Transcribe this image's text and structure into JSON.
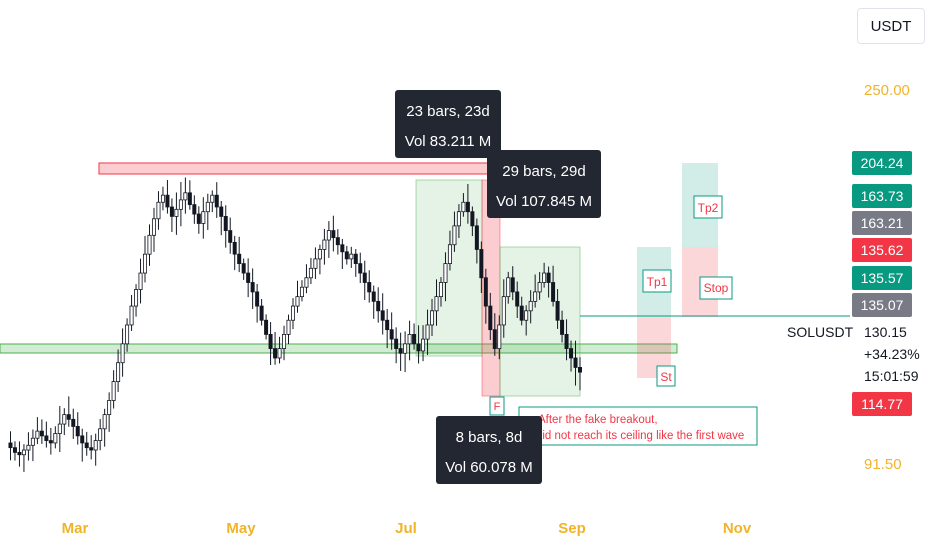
{
  "currency_selector": "USDT",
  "chart_data": {
    "type": "candlestick",
    "symbol": "SOLUSDT",
    "x_ticks": [
      "Mar",
      "May",
      "Jul",
      "Sep",
      "Nov"
    ],
    "y_ticks": [
      "250.00",
      "91.50"
    ],
    "ohlc_summary": {
      "close": 130.15,
      "change": "+34.23%",
      "countdown": "15:01:59"
    },
    "close_series_approx": [
      100,
      98,
      96,
      95,
      97,
      99,
      102,
      105,
      103,
      101,
      100,
      104,
      108,
      112,
      110,
      107,
      103,
      100,
      98,
      97,
      101,
      106,
      112,
      118,
      126,
      134,
      142,
      150,
      158,
      165,
      172,
      180,
      188,
      195,
      202,
      205,
      200,
      196,
      199,
      203,
      206,
      201,
      197,
      193,
      198,
      202,
      205,
      200,
      196,
      190,
      185,
      180,
      176,
      172,
      168,
      164,
      158,
      152,
      146,
      140,
      136,
      140,
      146,
      152,
      158,
      162,
      166,
      170,
      174,
      178,
      182,
      186,
      190,
      187,
      184,
      181,
      178,
      180,
      176,
      172,
      168,
      164,
      160,
      156,
      152,
      148,
      144,
      140,
      138,
      142,
      146,
      142,
      139,
      144,
      150,
      156,
      162,
      168,
      176,
      184,
      192,
      198,
      202,
      198,
      192,
      182,
      170,
      158,
      148,
      140,
      150,
      162,
      170,
      164,
      158,
      152,
      156,
      160,
      164,
      168,
      172,
      168,
      160,
      152,
      146,
      140,
      136,
      132,
      130
    ],
    "price_labels": [
      {
        "value": "204.24",
        "color": "#089981"
      },
      {
        "value": "163.73",
        "color": "#089981"
      },
      {
        "value": "163.21",
        "color": "#787b86"
      },
      {
        "value": "135.62",
        "color": "#f23645"
      },
      {
        "value": "135.57",
        "color": "#089981"
      },
      {
        "value": "135.07",
        "color": "#787b86"
      },
      {
        "value": "114.77",
        "color": "#f23645"
      }
    ],
    "measure_boxes": [
      {
        "bars": "23 bars, 23d",
        "vol": "Vol 83.211 M"
      },
      {
        "bars": "29 bars, 29d",
        "vol": "Vol 107.845 M"
      },
      {
        "bars": "8 bars, 8d",
        "vol": "Vol 60.078 M"
      }
    ],
    "trade_labels": [
      "Tp1",
      "St",
      "Tp2",
      "Stop",
      "F"
    ],
    "annotation": [
      "After the fake breakout,",
      "it did not reach its ceiling like the first wave"
    ],
    "colors": {
      "up": "#131722",
      "down": "#131722",
      "resistance": "#f23645",
      "support": "#4caf50",
      "ticks": "#f0b429"
    }
  }
}
